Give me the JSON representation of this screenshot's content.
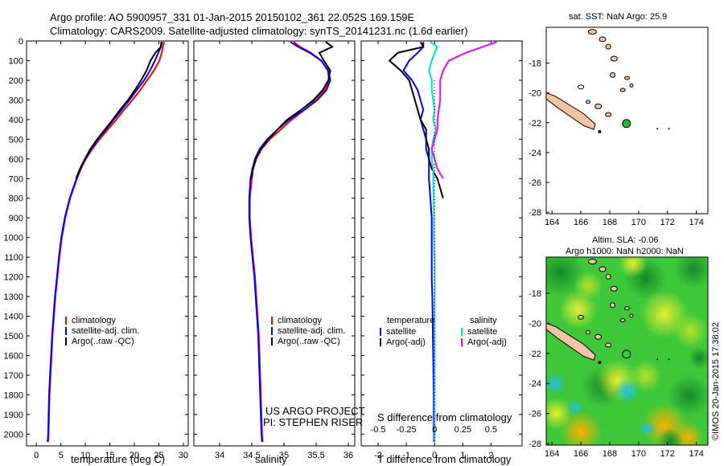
{
  "header": {
    "line1": "Argo profile: AO 5900957_331 01-Jan-2015 20150102_361 22.052S 169.159E",
    "line2": "Climatology: CARS2009. Satellite-adjusted climatology: synTS_20141231.nc (1.6d earlier)"
  },
  "colors": {
    "climatology": "#ff0000",
    "satellite": "#0000ff",
    "argo": "#000000",
    "sal_satellite": "#00dddd",
    "sal_argo": "#ff00ff",
    "land": "#f4c4a4",
    "float_marker": "#22bb22"
  },
  "chart_data": [
    {
      "type": "line",
      "id": "temperature",
      "xlabel": "temperature (deg C)",
      "ylabel": "",
      "xlim": [
        -2,
        31
      ],
      "ylim": [
        2060,
        0
      ],
      "xticks": [
        0,
        5,
        10,
        15,
        20,
        25,
        30
      ],
      "yticks": [
        0,
        100,
        200,
        300,
        400,
        500,
        600,
        700,
        800,
        900,
        1000,
        1100,
        1200,
        1300,
        1400,
        1500,
        1600,
        1700,
        1800,
        1900,
        2000
      ],
      "y_values": [
        5,
        30,
        60,
        100,
        150,
        200,
        250,
        300,
        350,
        400,
        450,
        500,
        550,
        600,
        650,
        700,
        800,
        900,
        1000,
        1100,
        1200,
        1300,
        1400,
        1500,
        1600,
        1700,
        1800,
        1900,
        2000,
        2040
      ],
      "legend": [
        "climatology",
        "satellite-adj. clim.",
        "Argo(..raw -QC)"
      ],
      "series": [
        {
          "name": "climatology",
          "color": "#ff0000",
          "values": [
            26.1,
            25.8,
            25.6,
            25.1,
            24.0,
            22.6,
            21.2,
            19.6,
            17.9,
            16.3,
            14.6,
            12.9,
            11.4,
            10.1,
            9.1,
            8.3,
            6.9,
            5.9,
            5.2,
            4.7,
            4.3,
            3.9,
            3.6,
            3.3,
            3.1,
            2.9,
            2.7,
            2.6,
            2.5,
            2.4
          ]
        },
        {
          "name": "satellite-adj. clim.",
          "color": "#0000ff",
          "values": [
            25.7,
            25.4,
            24.9,
            24.2,
            23.2,
            22.0,
            20.5,
            19.0,
            17.4,
            15.8,
            14.2,
            12.6,
            11.2,
            10.0,
            9.0,
            8.2,
            6.8,
            5.8,
            5.1,
            4.6,
            4.2,
            3.8,
            3.5,
            3.2,
            3.0,
            2.8,
            2.6,
            2.5,
            2.4,
            2.3
          ]
        },
        {
          "name": "Argo(..raw -QC)",
          "color": "#000000",
          "values": [
            25.5,
            25.4,
            24.3,
            23.3,
            22.5,
            21.4,
            20.1,
            18.7,
            17.1,
            15.6,
            14.0,
            12.4,
            11.0,
            9.9,
            8.9,
            8.1,
            null,
            null,
            null,
            null,
            null,
            null,
            null,
            null,
            null,
            null,
            null,
            null,
            null,
            null
          ]
        }
      ]
    },
    {
      "type": "line",
      "id": "salinity",
      "xlabel": "salinity",
      "ylabel": "",
      "xlim": [
        33.6,
        36.1
      ],
      "ylim": [
        2060,
        0
      ],
      "xticks": [
        34,
        34.5,
        35,
        35.5,
        36
      ],
      "y_values": [
        5,
        30,
        60,
        100,
        150,
        200,
        250,
        300,
        350,
        400,
        450,
        500,
        550,
        600,
        650,
        700,
        800,
        900,
        1000,
        1100,
        1200,
        1300,
        1400,
        1500,
        1600,
        1700,
        1800,
        1900,
        2000,
        2040
      ],
      "legend": [
        "climatology",
        "satellite-adj. clim.",
        "Argo(..raw -QC)"
      ],
      "annotation": [
        "US ARGO PROJECT",
        "PI: STEPHEN RISER"
      ],
      "series": [
        {
          "name": "climatology",
          "color": "#ff0000",
          "values": [
            35.15,
            35.25,
            35.42,
            35.58,
            35.68,
            35.7,
            35.63,
            35.5,
            35.32,
            35.12,
            34.95,
            34.78,
            34.65,
            34.57,
            34.52,
            34.5,
            34.47,
            34.47,
            34.49,
            34.52,
            34.55,
            34.57,
            34.59,
            34.61,
            34.62,
            34.63,
            34.64,
            34.65,
            34.66,
            34.67
          ]
        },
        {
          "name": "satellite-adj. clim.",
          "color": "#0000ff",
          "values": [
            35.1,
            35.22,
            35.4,
            35.58,
            35.69,
            35.72,
            35.66,
            35.52,
            35.32,
            35.08,
            34.9,
            34.74,
            34.62,
            34.55,
            34.51,
            34.48,
            34.46,
            34.46,
            34.48,
            34.51,
            34.54,
            34.56,
            34.58,
            34.6,
            34.61,
            34.62,
            34.63,
            34.64,
            34.65,
            34.66
          ]
        },
        {
          "name": "Argo(..raw -QC)",
          "color": "#000000",
          "values": [
            35.65,
            35.75,
            35.55,
            35.62,
            35.72,
            35.69,
            35.6,
            35.46,
            35.27,
            35.05,
            34.9,
            34.76,
            34.64,
            34.56,
            34.52,
            34.49,
            null,
            null,
            null,
            null,
            null,
            null,
            null,
            null,
            null,
            null,
            null,
            null,
            null,
            null
          ]
        }
      ]
    },
    {
      "type": "line",
      "id": "difference",
      "xlabel": "T difference from climatology",
      "x2label": "S difference from climatology",
      "xlim": [
        -2.6,
        3.1
      ],
      "ylim": [
        2060,
        0
      ],
      "xticks": [
        -2,
        -1,
        0,
        1,
        2
      ],
      "x2ticks": [
        -0.5,
        -0.25,
        0,
        0.25,
        0.5
      ],
      "x2_tick_values_T_units": [
        -2,
        -1,
        0,
        1,
        2
      ],
      "y_values": [
        5,
        30,
        60,
        100,
        150,
        200,
        250,
        300,
        350,
        400,
        450,
        500,
        550,
        600,
        650,
        700,
        800,
        900,
        1000,
        1100,
        1200,
        1300,
        1400,
        1500,
        1600,
        1700,
        1800,
        1900,
        2000,
        2040
      ],
      "legend_titles": [
        "temperature",
        "salinity"
      ],
      "legend": [
        "satellite",
        "Argo(-adj)",
        "satellite",
        "Argo(-adj)"
      ],
      "series": [
        {
          "name": "satellite",
          "group": "temperature",
          "color": "#0000ff",
          "values": [
            -0.4,
            -0.4,
            -0.6,
            -0.9,
            -1.1,
            -0.8,
            -0.6,
            -0.5,
            -0.4,
            -0.5,
            -0.4,
            -0.3,
            -0.3,
            -0.2,
            -0.2,
            -0.2,
            -0.15,
            -0.1,
            -0.1,
            -0.1,
            -0.1,
            -0.08,
            -0.07,
            -0.06,
            -0.05,
            -0.04,
            -0.03,
            -0.03,
            -0.02,
            -0.02
          ]
        },
        {
          "name": "Argo(-adj)",
          "group": "temperature",
          "color": "#000000",
          "values": [
            -0.5,
            -0.4,
            -1.3,
            -1.6,
            -1.2,
            -0.9,
            -0.8,
            -0.7,
            -0.6,
            -0.5,
            -0.3,
            -0.3,
            -0.2,
            -0.2,
            -0.1,
            0.1,
            0.3,
            null,
            null,
            null,
            null,
            null,
            null,
            null,
            null,
            null,
            null,
            null,
            null,
            null
          ]
        },
        {
          "name": "satellite",
          "group": "salinity",
          "color": "#00dddd",
          "values": [
            -0.15,
            0.1,
            0.0,
            -0.1,
            -0.2,
            -0.1,
            -0.1,
            -0.05,
            0.0,
            -0.05,
            0.05,
            -0.05,
            -0.1,
            -0.1,
            -0.05,
            -0.05,
            -0.03,
            -0.02,
            -0.02,
            -0.01,
            0.0,
            0.0,
            0.0,
            0.0,
            0.0,
            0.0,
            0.0,
            0.0,
            0.0,
            0.0
          ]
        },
        {
          "name": "Argo(-adj)",
          "group": "salinity",
          "color": "#ff00ff",
          "values": [
            2.2,
            1.7,
            1.1,
            0.5,
            0.3,
            0.2,
            0.2,
            0.2,
            0.15,
            0.1,
            0.1,
            0.0,
            -0.1,
            0.0,
            0.1,
            0.3,
            null,
            null,
            null,
            null,
            null,
            null,
            null,
            null,
            null,
            null,
            null,
            null,
            null,
            null
          ]
        }
      ]
    },
    {
      "type": "map",
      "id": "sst_map",
      "title": "sat. SST: NaN Argo: 25.9",
      "xlim": [
        163.6,
        174.8
      ],
      "ylim": [
        -28.1,
        -15.6
      ],
      "xticks": [
        164,
        166,
        168,
        170,
        172,
        174
      ],
      "yticks": [
        -18,
        -20,
        -22,
        -24,
        -26,
        -28
      ],
      "float_position": {
        "lon": 169.159,
        "lat": -22.052
      }
    },
    {
      "type": "heatmap",
      "id": "sla_map",
      "title": "Altim. SLA: -0.06",
      "subtitle": "Argo h1000: NaN h2000: NaN",
      "xlim": [
        163.6,
        174.8
      ],
      "ylim": [
        -28.1,
        -15.6
      ],
      "xticks": [
        164,
        166,
        168,
        170,
        172,
        174
      ],
      "yticks": [
        -18,
        -20,
        -22,
        -24,
        -26,
        -28
      ],
      "float_position": {
        "lon": 169.159,
        "lat": -22.052
      }
    }
  ],
  "credit": "©IMOS 20-Jan-2015 17:38:02"
}
